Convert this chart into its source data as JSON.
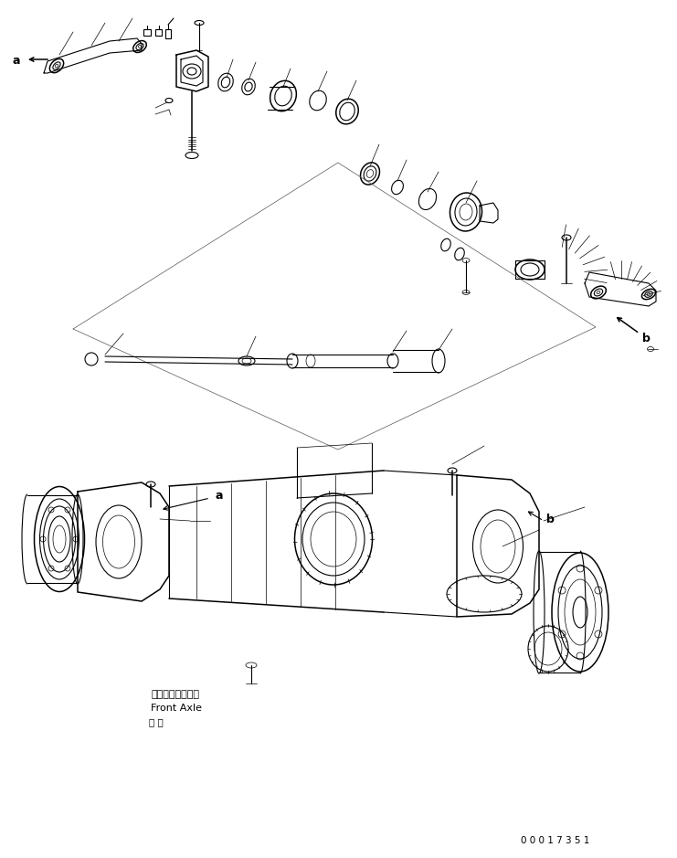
{
  "bg_color": "#ffffff",
  "line_color": "#000000",
  "fig_width": 7.41,
  "fig_height": 9.39,
  "dpi": 100,
  "part_number": "0 0 0 1 7 3 5 1",
  "front_axle_jp": "フロントアクスル",
  "front_axle_en": "Front Axle"
}
